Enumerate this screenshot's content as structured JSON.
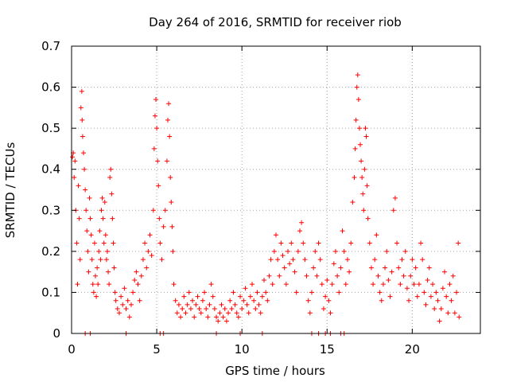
{
  "chart_data": {
    "type": "scatter",
    "title": "Day 264 of 2016, SRMTID for receiver riob",
    "xlabel": "GPS time / hours",
    "ylabel": "SRMTID / TECUs",
    "xlim": [
      0,
      24
    ],
    "ylim": [
      0,
      0.7
    ],
    "x_ticks": [
      0,
      5,
      10,
      15,
      20
    ],
    "y_ticks": [
      0,
      0.1,
      0.2,
      0.3,
      0.4,
      0.5,
      0.6,
      0.7
    ],
    "x_tick_labels": [
      "0",
      "5",
      "10",
      "15",
      "20"
    ],
    "y_tick_labels": [
      "0",
      "0.1",
      "0.2",
      "0.3",
      "0.4",
      "0.5",
      "0.6",
      "0.7"
    ],
    "grid": true,
    "marker": "+",
    "color": "#ff0000",
    "series": [
      {
        "points": [
          [
            0.05,
            0.43
          ],
          [
            0.1,
            0.44
          ],
          [
            0.15,
            0.38
          ],
          [
            0.2,
            0.42
          ],
          [
            0.25,
            0.3
          ],
          [
            0.3,
            0.22
          ],
          [
            0.35,
            0.12
          ],
          [
            0.4,
            0.36
          ],
          [
            0.45,
            0.28
          ],
          [
            0.5,
            0.18
          ],
          [
            0.55,
            0.55
          ],
          [
            0.6,
            0.59
          ],
          [
            0.62,
            0.52
          ],
          [
            0.65,
            0.48
          ],
          [
            0.7,
            0.44
          ],
          [
            0.75,
            0.4
          ],
          [
            0.8,
            0.35
          ],
          [
            0.85,
            0.3
          ],
          [
            0.9,
            0.25
          ],
          [
            0.95,
            0.2
          ],
          [
            1.0,
            0.15
          ],
          [
            1.05,
            0.33
          ],
          [
            1.1,
            0.28
          ],
          [
            1.15,
            0.24
          ],
          [
            1.2,
            0.18
          ],
          [
            1.25,
            0.12
          ],
          [
            1.3,
            0.1
          ],
          [
            1.35,
            0.22
          ],
          [
            1.4,
            0.14
          ],
          [
            1.45,
            0.09
          ],
          [
            1.5,
            0.16
          ],
          [
            1.55,
            0.12
          ],
          [
            1.6,
            0.2
          ],
          [
            1.65,
            0.25
          ],
          [
            1.7,
            0.18
          ],
          [
            1.75,
            0.3
          ],
          [
            1.8,
            0.33
          ],
          [
            1.85,
            0.28
          ],
          [
            1.9,
            0.22
          ],
          [
            1.95,
            0.32
          ],
          [
            2.0,
            0.24
          ],
          [
            2.05,
            0.18
          ],
          [
            2.1,
            0.2
          ],
          [
            2.15,
            0.15
          ],
          [
            2.2,
            0.12
          ],
          [
            2.25,
            0.38
          ],
          [
            2.3,
            0.4
          ],
          [
            2.35,
            0.34
          ],
          [
            2.4,
            0.28
          ],
          [
            2.45,
            0.22
          ],
          [
            2.5,
            0.16
          ],
          [
            2.55,
            0.1
          ],
          [
            2.6,
            0.08
          ],
          [
            2.7,
            0.06
          ],
          [
            2.8,
            0.05
          ],
          [
            2.9,
            0.09
          ],
          [
            3.0,
            0.07
          ],
          [
            3.1,
            0.11
          ],
          [
            3.2,
            0.06
          ],
          [
            3.3,
            0.08
          ],
          [
            3.4,
            0.04
          ],
          [
            3.5,
            0.07
          ],
          [
            3.6,
            0.1
          ],
          [
            3.7,
            0.13
          ],
          [
            3.8,
            0.15
          ],
          [
            3.9,
            0.12
          ],
          [
            4.0,
            0.08
          ],
          [
            4.1,
            0.14
          ],
          [
            4.2,
            0.18
          ],
          [
            4.3,
            0.22
          ],
          [
            4.4,
            0.16
          ],
          [
            4.5,
            0.2
          ],
          [
            4.6,
            0.24
          ],
          [
            4.7,
            0.19
          ],
          [
            4.8,
            0.3
          ],
          [
            4.85,
            0.45
          ],
          [
            4.9,
            0.53
          ],
          [
            4.95,
            0.57
          ],
          [
            5.0,
            0.5
          ],
          [
            5.05,
            0.42
          ],
          [
            5.1,
            0.36
          ],
          [
            5.15,
            0.28
          ],
          [
            5.2,
            0.22
          ],
          [
            5.3,
            0.18
          ],
          [
            5.4,
            0.26
          ],
          [
            5.5,
            0.3
          ],
          [
            5.6,
            0.42
          ],
          [
            5.65,
            0.52
          ],
          [
            5.7,
            0.56
          ],
          [
            5.75,
            0.48
          ],
          [
            5.8,
            0.38
          ],
          [
            5.85,
            0.32
          ],
          [
            5.9,
            0.26
          ],
          [
            5.95,
            0.2
          ],
          [
            6.0,
            0.12
          ],
          [
            6.1,
            0.08
          ],
          [
            6.2,
            0.05
          ],
          [
            6.3,
            0.07
          ],
          [
            6.4,
            0.04
          ],
          [
            6.5,
            0.06
          ],
          [
            6.6,
            0.09
          ],
          [
            6.7,
            0.05
          ],
          [
            6.8,
            0.07
          ],
          [
            6.9,
            0.1
          ],
          [
            7.0,
            0.06
          ],
          [
            7.1,
            0.08
          ],
          [
            7.2,
            0.04
          ],
          [
            7.3,
            0.07
          ],
          [
            7.4,
            0.09
          ],
          [
            7.5,
            0.06
          ],
          [
            7.6,
            0.05
          ],
          [
            7.7,
            0.08
          ],
          [
            7.8,
            0.1
          ],
          [
            7.9,
            0.06
          ],
          [
            8.0,
            0.04
          ],
          [
            8.1,
            0.07
          ],
          [
            8.2,
            0.12
          ],
          [
            8.3,
            0.09
          ],
          [
            8.4,
            0.06
          ],
          [
            8.5,
            0.04
          ],
          [
            8.6,
            0.03
          ],
          [
            8.7,
            0.05
          ],
          [
            8.8,
            0.07
          ],
          [
            8.9,
            0.04
          ],
          [
            9.0,
            0.06
          ],
          [
            9.1,
            0.03
          ],
          [
            9.2,
            0.05
          ],
          [
            9.3,
            0.08
          ],
          [
            9.4,
            0.06
          ],
          [
            9.5,
            0.1
          ],
          [
            9.6,
            0.07
          ],
          [
            9.7,
            0.05
          ],
          [
            9.8,
            0.04
          ],
          [
            9.9,
            0.09
          ],
          [
            10.0,
            0.06
          ],
          [
            10.1,
            0.08
          ],
          [
            10.2,
            0.11
          ],
          [
            10.3,
            0.07
          ],
          [
            10.4,
            0.05
          ],
          [
            10.5,
            0.09
          ],
          [
            10.6,
            0.12
          ],
          [
            10.7,
            0.08
          ],
          [
            10.8,
            0.06
          ],
          [
            10.9,
            0.1
          ],
          [
            11.0,
            0.07
          ],
          [
            11.1,
            0.05
          ],
          [
            11.2,
            0.09
          ],
          [
            11.3,
            0.13
          ],
          [
            11.4,
            0.1
          ],
          [
            11.5,
            0.08
          ],
          [
            11.6,
            0.14
          ],
          [
            11.7,
            0.18
          ],
          [
            11.8,
            0.12
          ],
          [
            11.9,
            0.2
          ],
          [
            12.0,
            0.24
          ],
          [
            12.1,
            0.18
          ],
          [
            12.2,
            0.14
          ],
          [
            12.3,
            0.22
          ],
          [
            12.4,
            0.19
          ],
          [
            12.5,
            0.16
          ],
          [
            12.6,
            0.12
          ],
          [
            12.7,
            0.2
          ],
          [
            12.8,
            0.17
          ],
          [
            12.9,
            0.22
          ],
          [
            13.0,
            0.18
          ],
          [
            13.1,
            0.15
          ],
          [
            13.2,
            0.1
          ],
          [
            13.3,
            0.2
          ],
          [
            13.4,
            0.25
          ],
          [
            13.5,
            0.27
          ],
          [
            13.6,
            0.22
          ],
          [
            13.7,
            0.18
          ],
          [
            13.8,
            0.14
          ],
          [
            13.9,
            0.08
          ],
          [
            14.0,
            0.05
          ],
          [
            14.1,
            0.1
          ],
          [
            14.2,
            0.16
          ],
          [
            14.3,
            0.2
          ],
          [
            14.4,
            0.14
          ],
          [
            14.5,
            0.22
          ],
          [
            14.6,
            0.18
          ],
          [
            14.7,
            0.12
          ],
          [
            14.8,
            0.06
          ],
          [
            14.9,
            0.09
          ],
          [
            15.0,
            0.13
          ],
          [
            15.1,
            0.08
          ],
          [
            15.2,
            0.05
          ],
          [
            15.3,
            0.12
          ],
          [
            15.4,
            0.17
          ],
          [
            15.5,
            0.2
          ],
          [
            15.6,
            0.14
          ],
          [
            15.7,
            0.1
          ],
          [
            15.8,
            0.16
          ],
          [
            15.9,
            0.25
          ],
          [
            16.0,
            0.2
          ],
          [
            16.1,
            0.12
          ],
          [
            16.2,
            0.18
          ],
          [
            16.3,
            0.15
          ],
          [
            16.4,
            0.22
          ],
          [
            16.5,
            0.32
          ],
          [
            16.6,
            0.38
          ],
          [
            16.65,
            0.45
          ],
          [
            16.7,
            0.52
          ],
          [
            16.75,
            0.6
          ],
          [
            16.8,
            0.63
          ],
          [
            16.85,
            0.57
          ],
          [
            16.9,
            0.5
          ],
          [
            16.95,
            0.46
          ],
          [
            17.0,
            0.42
          ],
          [
            17.05,
            0.38
          ],
          [
            17.1,
            0.34
          ],
          [
            17.15,
            0.3
          ],
          [
            17.2,
            0.4
          ],
          [
            17.25,
            0.5
          ],
          [
            17.3,
            0.48
          ],
          [
            17.35,
            0.36
          ],
          [
            17.4,
            0.28
          ],
          [
            17.5,
            0.22
          ],
          [
            17.6,
            0.16
          ],
          [
            17.7,
            0.12
          ],
          [
            17.8,
            0.18
          ],
          [
            17.9,
            0.24
          ],
          [
            18.0,
            0.14
          ],
          [
            18.1,
            0.1
          ],
          [
            18.2,
            0.08
          ],
          [
            18.3,
            0.12
          ],
          [
            18.4,
            0.16
          ],
          [
            18.5,
            0.2
          ],
          [
            18.6,
            0.13
          ],
          [
            18.7,
            0.09
          ],
          [
            18.8,
            0.15
          ],
          [
            18.9,
            0.3
          ],
          [
            19.0,
            0.33
          ],
          [
            19.1,
            0.22
          ],
          [
            19.2,
            0.16
          ],
          [
            19.3,
            0.12
          ],
          [
            19.4,
            0.18
          ],
          [
            19.5,
            0.14
          ],
          [
            19.6,
            0.2
          ],
          [
            19.7,
            0.11
          ],
          [
            19.8,
            0.08
          ],
          [
            19.9,
            0.14
          ],
          [
            20.0,
            0.18
          ],
          [
            20.1,
            0.12
          ],
          [
            20.2,
            0.16
          ],
          [
            20.3,
            0.09
          ],
          [
            20.4,
            0.12
          ],
          [
            20.5,
            0.22
          ],
          [
            20.6,
            0.18
          ],
          [
            20.7,
            0.1
          ],
          [
            20.8,
            0.07
          ],
          [
            20.9,
            0.13
          ],
          [
            21.0,
            0.16
          ],
          [
            21.1,
            0.09
          ],
          [
            21.2,
            0.12
          ],
          [
            21.3,
            0.06
          ],
          [
            21.4,
            0.1
          ],
          [
            21.5,
            0.08
          ],
          [
            21.6,
            0.03
          ],
          [
            21.7,
            0.06
          ],
          [
            21.8,
            0.11
          ],
          [
            21.9,
            0.15
          ],
          [
            22.0,
            0.09
          ],
          [
            22.1,
            0.05
          ],
          [
            22.2,
            0.12
          ],
          [
            22.3,
            0.08
          ],
          [
            22.4,
            0.14
          ],
          [
            22.5,
            0.05
          ],
          [
            22.6,
            0.1
          ],
          [
            22.7,
            0.22
          ],
          [
            22.75,
            0.04
          ],
          [
            0.8,
            0
          ],
          [
            1.1,
            0
          ],
          [
            3.2,
            0
          ],
          [
            5.2,
            0
          ],
          [
            5.4,
            0
          ],
          [
            8.5,
            0
          ],
          [
            9.9,
            0
          ],
          [
            11.2,
            0
          ],
          [
            14.1,
            0
          ],
          [
            14.5,
            0
          ],
          [
            14.9,
            0
          ],
          [
            15.2,
            0
          ],
          [
            15.8,
            0
          ],
          [
            16.0,
            0
          ]
        ]
      }
    ]
  }
}
